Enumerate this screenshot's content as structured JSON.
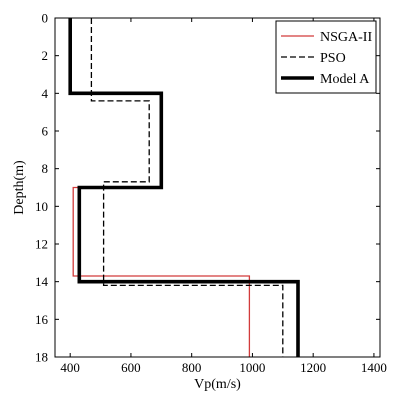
{
  "chart_data": {
    "type": "line",
    "title": "",
    "xlabel": "Vp(m/s)",
    "ylabel": "Depth(m)",
    "xlim": [
      350,
      1420
    ],
    "ylim": [
      18,
      0
    ],
    "y_axis_inverted": true,
    "x_ticks": [
      400,
      600,
      800,
      1000,
      1200,
      1400
    ],
    "y_ticks": [
      0,
      2,
      4,
      6,
      8,
      10,
      12,
      14,
      16,
      18
    ],
    "grid": false,
    "legend_position": "top-right",
    "series": [
      {
        "name": "NSGA-II",
        "color": "#d23b3b",
        "style": "solid",
        "points": [
          [
            400,
            0
          ],
          [
            400,
            4
          ],
          [
            700,
            4
          ],
          [
            700,
            9
          ],
          [
            410,
            9
          ],
          [
            410,
            13.7
          ],
          [
            990,
            13.7
          ],
          [
            990,
            18
          ]
        ]
      },
      {
        "name": "PSO",
        "color": "#000000",
        "style": "dashed",
        "points": [
          [
            470,
            0
          ],
          [
            470,
            4.4
          ],
          [
            660,
            4.4
          ],
          [
            660,
            8.7
          ],
          [
            510,
            8.7
          ],
          [
            510,
            14.2
          ],
          [
            1100,
            14.2
          ],
          [
            1100,
            18
          ]
        ]
      },
      {
        "name": "Model A",
        "color": "#000000",
        "style": "solid-thick",
        "points": [
          [
            400,
            0
          ],
          [
            400,
            4
          ],
          [
            700,
            4
          ],
          [
            700,
            9
          ],
          [
            430,
            9
          ],
          [
            430,
            14
          ],
          [
            1150,
            14
          ],
          [
            1150,
            18
          ]
        ]
      }
    ]
  }
}
